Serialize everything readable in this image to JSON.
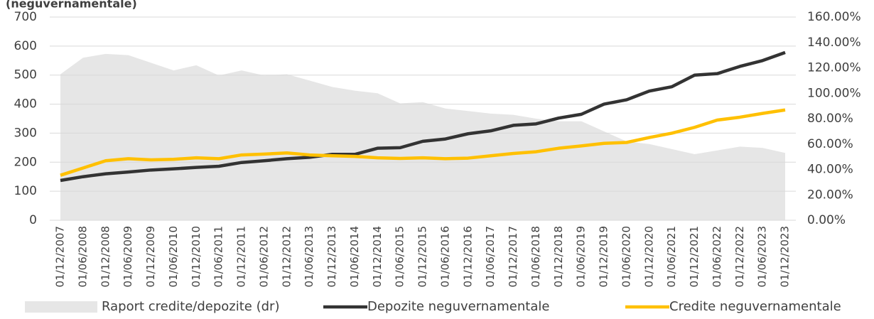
{
  "chart_data": {
    "type": "line",
    "title": "(neguvernamentale)",
    "categories": [
      "01/12/2007",
      "01/06/2008",
      "01/12/2008",
      "01/06/2009",
      "01/12/2009",
      "01/06/2010",
      "01/12/2010",
      "01/06/2011",
      "01/12/2011",
      "01/06/2012",
      "01/12/2012",
      "01/06/2013",
      "01/12/2013",
      "01/06/2014",
      "01/12/2014",
      "01/06/2015",
      "01/12/2015",
      "01/06/2016",
      "01/12/2016",
      "01/06/2017",
      "01/12/2017",
      "01/06/2018",
      "01/12/2018",
      "01/06/2019",
      "01/12/2019",
      "01/06/2020",
      "01/12/2020",
      "01/06/2021",
      "01/12/2021",
      "01/06/2022",
      "01/12/2022",
      "01/06/2023",
      "01/12/2023"
    ],
    "series": [
      {
        "name": "Raport credite/depozite (dr)",
        "type": "area",
        "axis": "y2",
        "color": "#e6e6e6",
        "values": [
          115,
          128,
          131,
          130,
          124,
          118,
          122,
          114,
          118,
          114,
          115,
          110,
          105,
          102,
          100,
          92,
          93,
          88,
          86,
          84,
          83,
          80,
          78,
          78,
          70,
          62,
          60,
          56,
          52,
          55,
          58,
          57,
          53
        ]
      },
      {
        "name": "Depozite neguvernamentale",
        "type": "line",
        "color": "#333333",
        "values": [
          137,
          150,
          160,
          166,
          173,
          177,
          182,
          186,
          199,
          205,
          212,
          217,
          227,
          227,
          248,
          250,
          272,
          280,
          298,
          308,
          327,
          332,
          352,
          365,
          400,
          415,
          445,
          460,
          500,
          505,
          530,
          550,
          578
        ]
      },
      {
        "name": "Credite neguvernamentale",
        "type": "line",
        "color": "#ffc000",
        "values": [
          155,
          180,
          205,
          212,
          208,
          210,
          215,
          212,
          225,
          228,
          232,
          225,
          222,
          220,
          215,
          213,
          215,
          212,
          214,
          222,
          230,
          236,
          248,
          256,
          265,
          268,
          285,
          300,
          320,
          345,
          355,
          368,
          380
        ]
      }
    ],
    "ylim": [
      0,
      700
    ],
    "yticks": [
      0,
      100,
      200,
      300,
      400,
      500,
      600,
      700
    ],
    "y2lim": [
      0,
      160
    ],
    "y2ticks": [
      {
        "value": 0,
        "label": "0.00%"
      },
      {
        "value": 20,
        "label": "20.00%"
      },
      {
        "value": 40,
        "label": "40.00%"
      },
      {
        "value": 60,
        "label": "60.00%"
      },
      {
        "value": 80,
        "label": "80.00%"
      },
      {
        "value": 100,
        "label": "100.00%"
      },
      {
        "value": 120,
        "label": "120.00%"
      },
      {
        "value": 140,
        "label": "140.00%"
      },
      {
        "value": 160,
        "label": "160.00%"
      }
    ],
    "grid": true,
    "legend": "bottom"
  }
}
